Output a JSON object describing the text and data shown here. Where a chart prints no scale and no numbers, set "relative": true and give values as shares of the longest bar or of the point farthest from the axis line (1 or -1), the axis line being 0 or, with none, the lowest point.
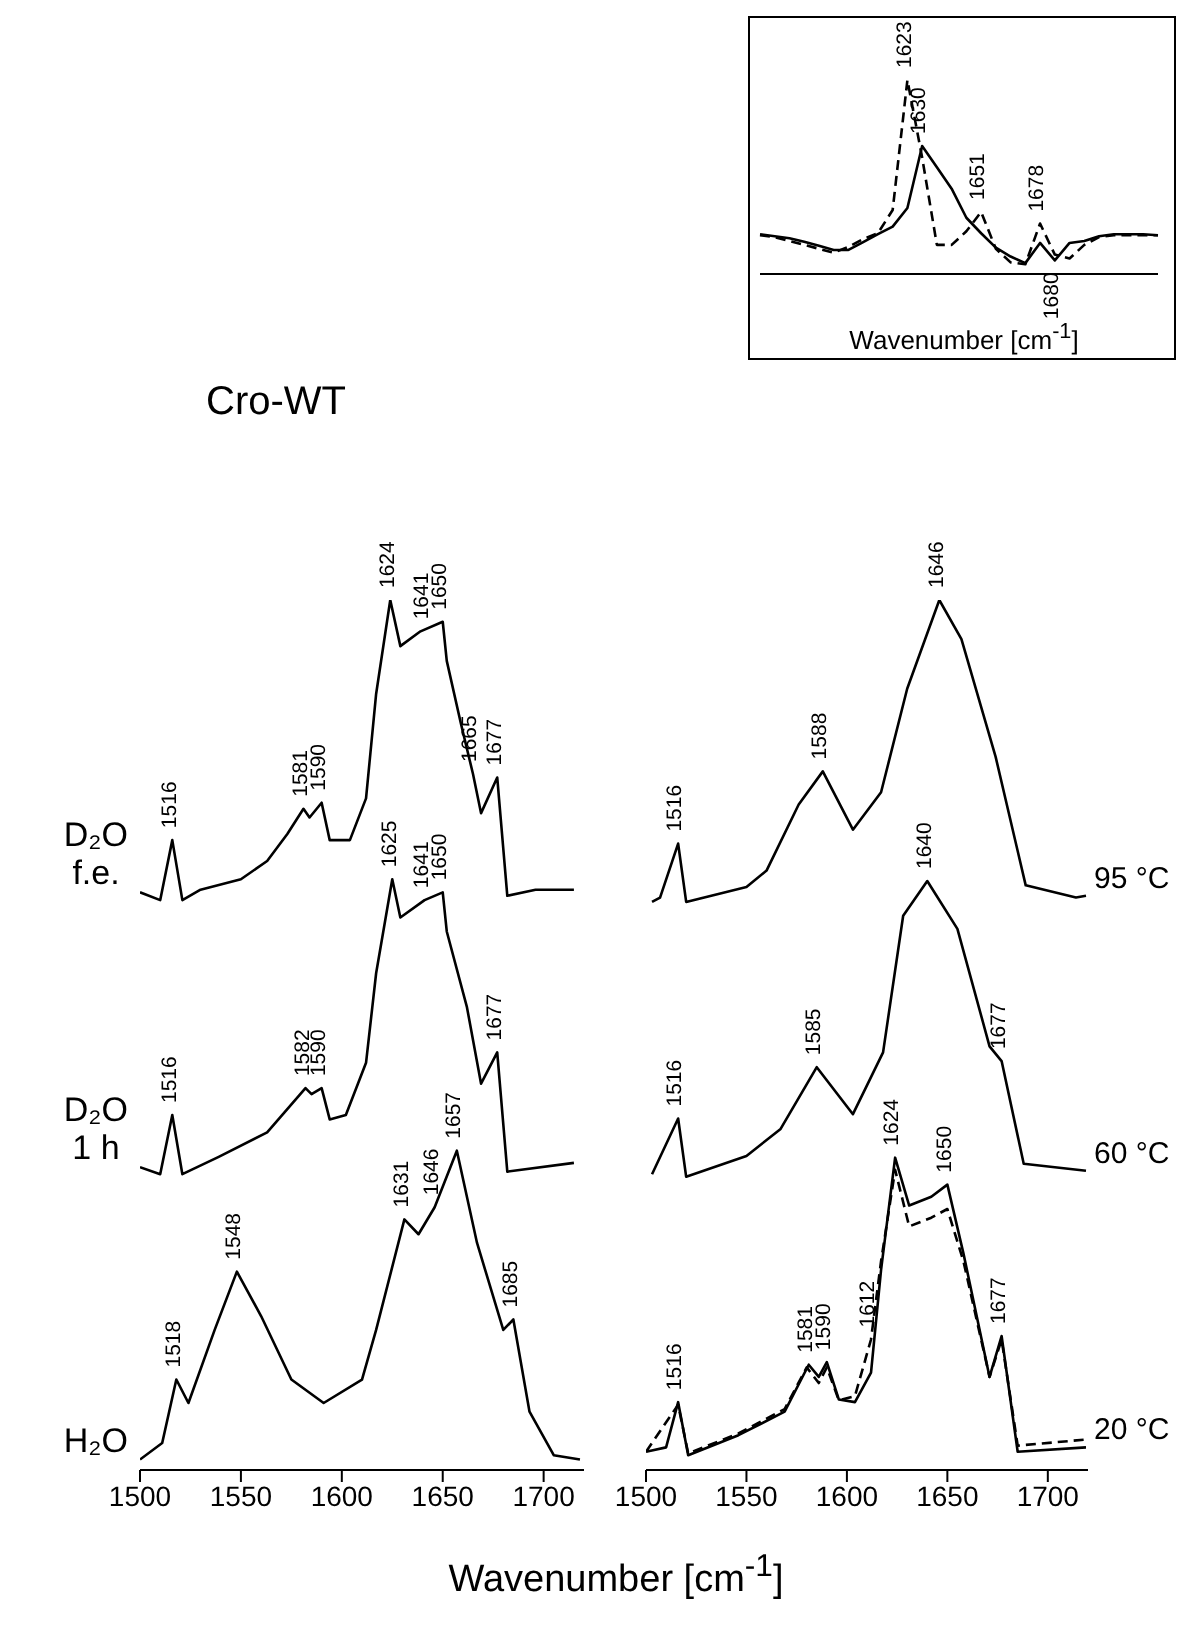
{
  "chart_data": [
    {
      "type": "line",
      "relative": true,
      "xlabel": "Wavenumber [cm$^{-1}$]",
      "xlim": [
        1500,
        1720
      ],
      "xticks": [
        1500,
        1550,
        1600,
        1650,
        1700
      ],
      "series": [
        {
          "name": "D₂O f.e.",
          "color": "#000000",
          "line_style": "solid",
          "x": [
            1500,
            1510,
            1516,
            1521,
            1530,
            1550,
            1563,
            1573,
            1581,
            1584,
            1590,
            1594,
            1604,
            1612,
            1617,
            1624,
            1629,
            1639,
            1650,
            1652,
            1659,
            1665,
            1669,
            1677,
            1682,
            1696,
            1715
          ],
          "values": [
            0.664,
            0.655,
            0.724,
            0.655,
            0.667,
            0.679,
            0.7,
            0.731,
            0.76,
            0.75,
            0.767,
            0.724,
            0.724,
            0.772,
            0.892,
            1.0,
            0.947,
            0.964,
            0.975,
            0.93,
            0.858,
            0.8,
            0.755,
            0.796,
            0.66,
            0.667,
            0.667
          ]
        },
        {
          "name": "D₂O 1 h",
          "color": "#000000",
          "line_style": "solid",
          "x": [
            1500,
            1510,
            1516,
            1521,
            1539,
            1563,
            1582,
            1585,
            1590,
            1594,
            1602,
            1612,
            1617,
            1625,
            1629,
            1641,
            1650,
            1652,
            1662,
            1669,
            1677,
            1682,
            1715
          ],
          "values": [
            0.348,
            0.34,
            0.408,
            0.34,
            0.36,
            0.388,
            0.439,
            0.432,
            0.439,
            0.403,
            0.408,
            0.468,
            0.571,
            0.679,
            0.635,
            0.655,
            0.664,
            0.619,
            0.532,
            0.444,
            0.48,
            0.343,
            0.353
          ]
        },
        {
          "name": "H₂O",
          "color": "#000000",
          "line_style": "solid",
          "x": [
            1500,
            1511,
            1518,
            1524,
            1537,
            1548,
            1560,
            1575,
            1591,
            1610,
            1617,
            1631,
            1638,
            1646,
            1657,
            1667,
            1680,
            1685,
            1693,
            1705,
            1718
          ],
          "values": [
            0.012,
            0.031,
            0.104,
            0.077,
            0.161,
            0.228,
            0.177,
            0.104,
            0.077,
            0.104,
            0.161,
            0.288,
            0.271,
            0.302,
            0.367,
            0.261,
            0.161,
            0.173,
            0.067,
            0.017,
            0.012
          ]
        }
      ],
      "annotations": [
        "Cro-WT",
        {
          "text": "1516",
          "x": 1516,
          "y": 0.724
        },
        {
          "text": "1581",
          "x": 1581,
          "y": 0.76
        },
        {
          "text": "1590",
          "x": 1590,
          "y": 0.767
        },
        {
          "text": "1624",
          "x": 1624,
          "y": 1.0
        },
        {
          "text": "1641",
          "x": 1641,
          "y": 0.964
        },
        {
          "text": "1650",
          "x": 1650,
          "y": 0.975
        },
        {
          "text": "1665",
          "x": 1665,
          "y": 0.8
        },
        {
          "text": "1677",
          "x": 1677,
          "y": 0.796
        },
        {
          "text": "1516",
          "x": 1516,
          "y": 0.408
        },
        {
          "text": "1582",
          "x": 1582,
          "y": 0.439
        },
        {
          "text": "1590",
          "x": 1590,
          "y": 0.439
        },
        {
          "text": "1625",
          "x": 1625,
          "y": 0.679
        },
        {
          "text": "1641",
          "x": 1641,
          "y": 0.655
        },
        {
          "text": "1650",
          "x": 1650,
          "y": 0.664
        },
        {
          "text": "1677",
          "x": 1677,
          "y": 0.48
        },
        {
          "text": "1518",
          "x": 1518,
          "y": 0.104
        },
        {
          "text": "1548",
          "x": 1548,
          "y": 0.228
        },
        {
          "text": "1631",
          "x": 1631,
          "y": 0.288
        },
        {
          "text": "1646",
          "x": 1646,
          "y": 0.302
        },
        {
          "text": "1657",
          "x": 1657,
          "y": 0.367
        },
        {
          "text": "1685",
          "x": 1685,
          "y": 0.173
        }
      ]
    },
    {
      "type": "line",
      "relative": true,
      "xlim": [
        1500,
        1720
      ],
      "xticks": [
        1500,
        1550,
        1600,
        1650,
        1700
      ],
      "series": [
        {
          "name": "95 °C",
          "color": "#000000",
          "line_style": "solid",
          "x": [
            1503,
            1507,
            1516,
            1520,
            1550,
            1560,
            1576,
            1588,
            1603,
            1617,
            1630,
            1646,
            1657,
            1674,
            1689,
            1714,
            1719
          ],
          "values": [
            0.653,
            0.658,
            0.72,
            0.653,
            0.67,
            0.689,
            0.765,
            0.803,
            0.736,
            0.779,
            0.898,
            1.0,
            0.955,
            0.82,
            0.672,
            0.658,
            0.66
          ]
        },
        {
          "name": "60 °C",
          "color": "#000000",
          "line_style": "solid",
          "x": [
            1503,
            1516,
            1520,
            1550,
            1567,
            1585,
            1603,
            1618,
            1628,
            1640,
            1655,
            1671,
            1677,
            1688,
            1719
          ],
          "values": [
            0.34,
            0.404,
            0.337,
            0.361,
            0.392,
            0.463,
            0.409,
            0.48,
            0.637,
            0.677,
            0.622,
            0.487,
            0.47,
            0.352,
            0.344
          ]
        },
        {
          "name": "20 °C",
          "color": "#000000",
          "line_style": "solid",
          "x": [
            1500,
            1510,
            1516,
            1521,
            1546,
            1569,
            1581,
            1586,
            1590,
            1596,
            1604,
            1612,
            1617,
            1624,
            1631,
            1642,
            1650,
            1658,
            1671,
            1677,
            1685,
            1719
          ],
          "values": [
            0.021,
            0.026,
            0.078,
            0.017,
            0.04,
            0.067,
            0.121,
            0.107,
            0.124,
            0.081,
            0.078,
            0.112,
            0.23,
            0.359,
            0.304,
            0.314,
            0.328,
            0.249,
            0.107,
            0.154,
            0.021,
            0.026
          ]
        },
        {
          "color": "#000000",
          "line_style": "dashed",
          "x": [
            1500,
            1516,
            1521,
            1546,
            1569,
            1580,
            1586,
            1590,
            1596,
            1604,
            1612,
            1617,
            1624,
            1631,
            1642,
            1650,
            1658,
            1671,
            1677,
            1685,
            1719
          ],
          "values": [
            0.021,
            0.075,
            0.019,
            0.042,
            0.07,
            0.118,
            0.1,
            0.118,
            0.08,
            0.085,
            0.15,
            0.24,
            0.345,
            0.28,
            0.29,
            0.3,
            0.24,
            0.107,
            0.15,
            0.028,
            0.035
          ]
        }
      ],
      "annotations": [
        {
          "text": "1516",
          "x": 1516,
          "y": 0.72
        },
        {
          "text": "1588",
          "x": 1588,
          "y": 0.803
        },
        {
          "text": "1646",
          "x": 1646,
          "y": 1.0
        },
        {
          "text": "1516",
          "x": 1516,
          "y": 0.404
        },
        {
          "text": "1585",
          "x": 1585,
          "y": 0.463
        },
        {
          "text": "1640",
          "x": 1640,
          "y": 0.677
        },
        {
          "text": "1677",
          "x": 1677,
          "y": 0.47
        },
        {
          "text": "1516",
          "x": 1516,
          "y": 0.078
        },
        {
          "text": "1581",
          "x": 1581,
          "y": 0.121
        },
        {
          "text": "1590",
          "x": 1590,
          "y": 0.124
        },
        {
          "text": "1612",
          "x": 1612,
          "y": 0.15
        },
        {
          "text": "1624",
          "x": 1624,
          "y": 0.359
        },
        {
          "text": "1650",
          "x": 1650,
          "y": 0.328
        },
        {
          "text": "1677",
          "x": 1677,
          "y": 0.154
        }
      ]
    },
    {
      "type": "line",
      "relative": true,
      "xlabel": "Wavenumber [cm$^{-1}$]",
      "categories": [
        null,
        null,
        null,
        null,
        null,
        null,
        null,
        null,
        null,
        null,
        null,
        null,
        null,
        null,
        null,
        null,
        null,
        null,
        null,
        null,
        null,
        null,
        null,
        null,
        null,
        null,
        null,
        null
      ],
      "series": [
        {
          "color": "#000000",
          "line_style": "solid",
          "values": [
            0.205,
            0.195,
            0.184,
            0.166,
            0.145,
            0.124,
            0.124,
            0.164,
            0.205,
            0.244,
            0.34,
            0.66,
            0.55,
            0.44,
            0.29,
            0.21,
            0.136,
            0.09,
            0.056,
            0.16,
            0.07,
            0.16,
            0.17,
            0.195,
            0.205,
            0.205,
            0.205,
            0.2
          ]
        },
        {
          "color": "#000000",
          "line_style": "dashed",
          "values": [
            0.2,
            0.19,
            0.17,
            0.15,
            0.13,
            0.11,
            0.14,
            0.18,
            0.21,
            0.33,
            1.0,
            0.6,
            0.15,
            0.15,
            0.22,
            0.32,
            0.13,
            0.06,
            0.05,
            0.26,
            0.1,
            0.08,
            0.15,
            0.19,
            0.2,
            0.2,
            0.2,
            0.2
          ]
        }
      ],
      "annotations": [
        {
          "text": "1623",
          "y": 1.0
        },
        {
          "text": "1630",
          "y": 0.66
        },
        {
          "text": "1651",
          "y": 0.32
        },
        {
          "text": "1678",
          "y": 0.26
        },
        {
          "text": "1680",
          "y": 0.07
        }
      ]
    }
  ]
}
